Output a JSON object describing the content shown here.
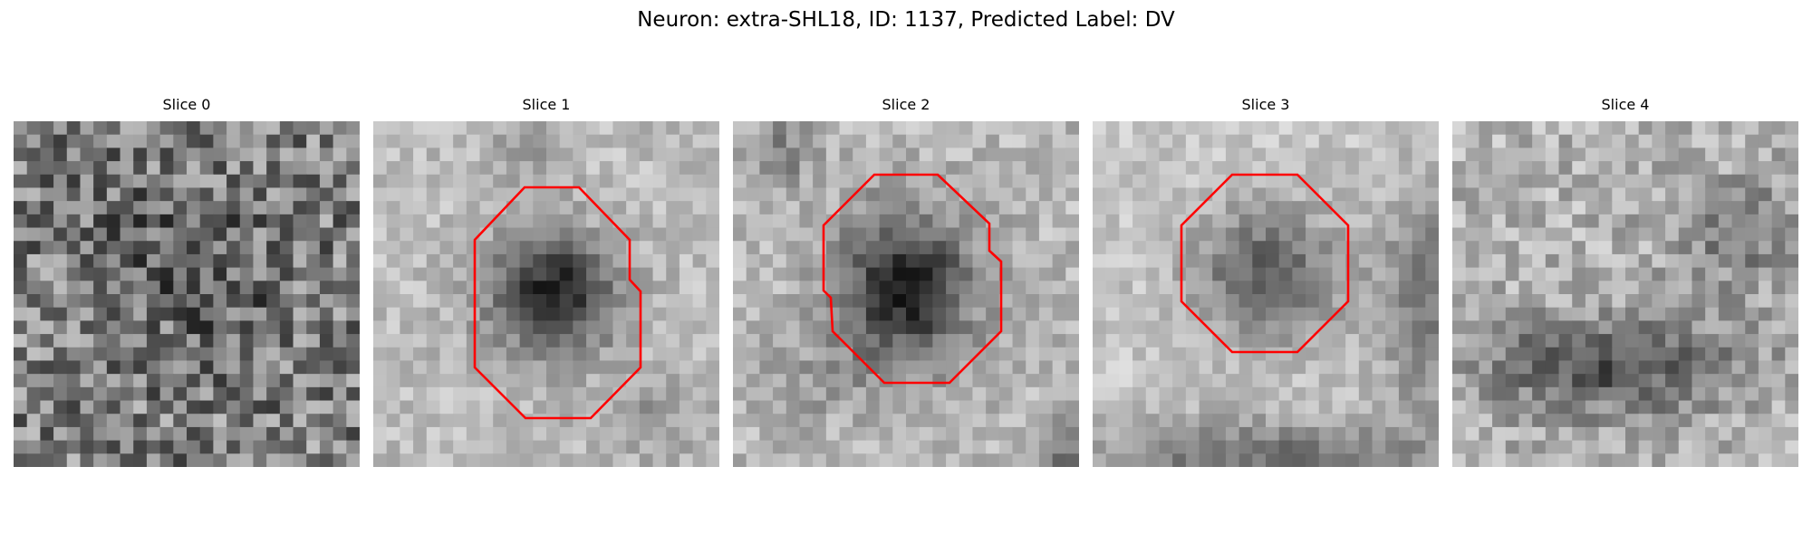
{
  "figure": {
    "title": "Neuron: extra-SHL18, ID: 1137, Predicted Label: DV",
    "contour_color": "#ff0000"
  },
  "panels": [
    {
      "title": "Slice 0",
      "has_contour": false,
      "dark_region": "scattered",
      "brightness": "mid-gray"
    },
    {
      "title": "Slice 1",
      "has_contour": true,
      "dark_region": "center",
      "brightness": "light"
    },
    {
      "title": "Slice 2",
      "has_contour": true,
      "dark_region": "center",
      "brightness": "light"
    },
    {
      "title": "Slice 3",
      "has_contour": true,
      "dark_region": "center",
      "brightness": "light"
    },
    {
      "title": "Slice 4",
      "has_contour": false,
      "dark_region": "lower band",
      "brightness": "light"
    }
  ]
}
